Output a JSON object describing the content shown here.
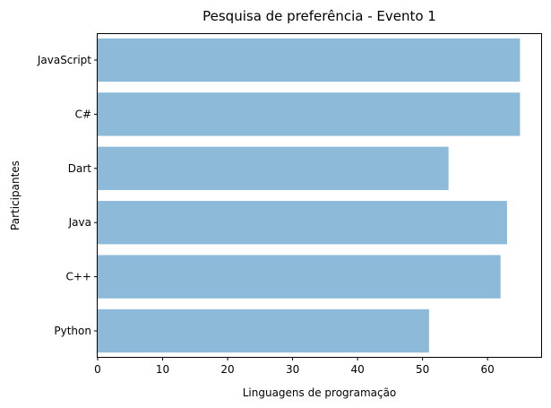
{
  "chart_data": {
    "type": "bar",
    "orientation": "horizontal",
    "title": "Pesquisa de preferência - Evento 1",
    "xlabel": "Linguagens de programação",
    "ylabel": "Participantes",
    "categories": [
      "Python",
      "C++",
      "Java",
      "Dart",
      "C#",
      "JavaScript"
    ],
    "values": [
      51,
      62,
      63,
      54,
      65,
      65
    ],
    "xlim": [
      0,
      68.25
    ],
    "xticks": [
      0,
      10,
      20,
      30,
      40,
      50,
      60
    ],
    "bar_color": "#8ebad9",
    "grid": false,
    "legend": "none"
  }
}
